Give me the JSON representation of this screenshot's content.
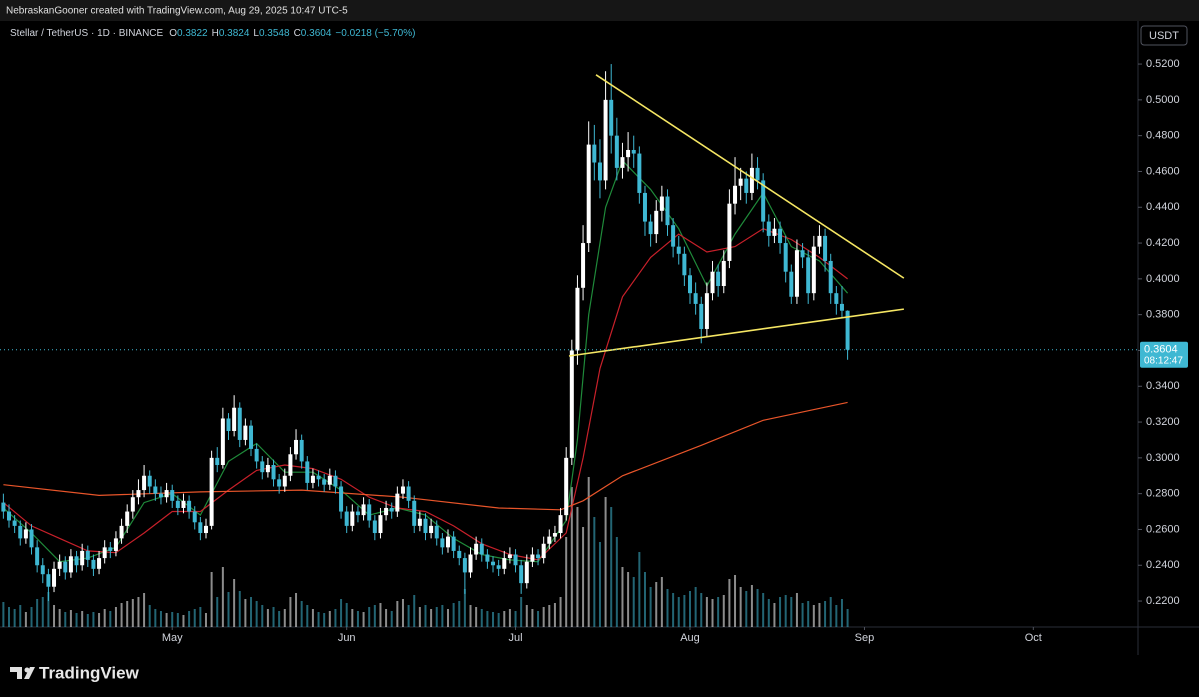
{
  "chart_data": {
    "type": "candlestick",
    "credit": "NebraskanGooner created with TradingView.com, Aug 29, 2025 10:47 UTC-5",
    "symbol": "Stellar / TetherUS · 1D · BINANCE",
    "ohlc_labels": [
      "O",
      "H",
      "L",
      "C"
    ],
    "change": "−0.0218 (−5.70%)",
    "currency": "USDT",
    "countdown": "08:12:47",
    "brand": "TradingView",
    "up_color": "#ffffff",
    "down_color": "#3fb8d3",
    "candles": [
      [
        0.275,
        0.28,
        0.266,
        0.27
      ],
      [
        0.27,
        0.274,
        0.261,
        0.265
      ],
      [
        0.265,
        0.268,
        0.258,
        0.262
      ],
      [
        0.262,
        0.265,
        0.251,
        0.255
      ],
      [
        0.255,
        0.264,
        0.252,
        0.26
      ],
      [
        0.26,
        0.263,
        0.246,
        0.25
      ],
      [
        0.25,
        0.254,
        0.236,
        0.24
      ],
      [
        0.24,
        0.244,
        0.23,
        0.235
      ],
      [
        0.235,
        0.238,
        0.22,
        0.228
      ],
      [
        0.228,
        0.242,
        0.225,
        0.238
      ],
      [
        0.238,
        0.246,
        0.234,
        0.242
      ],
      [
        0.242,
        0.245,
        0.232,
        0.236
      ],
      [
        0.236,
        0.249,
        0.233,
        0.245
      ],
      [
        0.245,
        0.248,
        0.236,
        0.24
      ],
      [
        0.24,
        0.252,
        0.237,
        0.248
      ],
      [
        0.248,
        0.251,
        0.239,
        0.243
      ],
      [
        0.243,
        0.246,
        0.234,
        0.238
      ],
      [
        0.238,
        0.248,
        0.235,
        0.244
      ],
      [
        0.244,
        0.254,
        0.241,
        0.25
      ],
      [
        0.25,
        0.253,
        0.244,
        0.248
      ],
      [
        0.248,
        0.259,
        0.245,
        0.255
      ],
      [
        0.255,
        0.266,
        0.252,
        0.262
      ],
      [
        0.262,
        0.274,
        0.258,
        0.27
      ],
      [
        0.27,
        0.282,
        0.266,
        0.278
      ],
      [
        0.278,
        0.288,
        0.274,
        0.282
      ],
      [
        0.282,
        0.296,
        0.278,
        0.29
      ],
      [
        0.29,
        0.293,
        0.28,
        0.284
      ],
      [
        0.284,
        0.288,
        0.276,
        0.28
      ],
      [
        0.28,
        0.284,
        0.274,
        0.278
      ],
      [
        0.278,
        0.286,
        0.275,
        0.282
      ],
      [
        0.282,
        0.285,
        0.272,
        0.276
      ],
      [
        0.276,
        0.279,
        0.268,
        0.272
      ],
      [
        0.272,
        0.28,
        0.269,
        0.276
      ],
      [
        0.276,
        0.279,
        0.266,
        0.27
      ],
      [
        0.27,
        0.273,
        0.26,
        0.264
      ],
      [
        0.264,
        0.267,
        0.254,
        0.258
      ],
      [
        0.258,
        0.266,
        0.255,
        0.262
      ],
      [
        0.262,
        0.304,
        0.26,
        0.3
      ],
      [
        0.3,
        0.306,
        0.292,
        0.296
      ],
      [
        0.296,
        0.328,
        0.294,
        0.322
      ],
      [
        0.322,
        0.325,
        0.31,
        0.315
      ],
      [
        0.315,
        0.335,
        0.312,
        0.328
      ],
      [
        0.328,
        0.331,
        0.306,
        0.31
      ],
      [
        0.31,
        0.322,
        0.307,
        0.318
      ],
      [
        0.318,
        0.321,
        0.301,
        0.305
      ],
      [
        0.305,
        0.308,
        0.294,
        0.298
      ],
      [
        0.298,
        0.301,
        0.288,
        0.292
      ],
      [
        0.292,
        0.3,
        0.289,
        0.296
      ],
      [
        0.296,
        0.299,
        0.284,
        0.288
      ],
      [
        0.288,
        0.291,
        0.28,
        0.284
      ],
      [
        0.284,
        0.294,
        0.281,
        0.29
      ],
      [
        0.29,
        0.306,
        0.287,
        0.302
      ],
      [
        0.302,
        0.316,
        0.299,
        0.31
      ],
      [
        0.31,
        0.313,
        0.294,
        0.298
      ],
      [
        0.298,
        0.301,
        0.282,
        0.286
      ],
      [
        0.286,
        0.294,
        0.283,
        0.29
      ],
      [
        0.29,
        0.293,
        0.284,
        0.288
      ],
      [
        0.288,
        0.291,
        0.281,
        0.285
      ],
      [
        0.285,
        0.294,
        0.282,
        0.29
      ],
      [
        0.29,
        0.293,
        0.28,
        0.284
      ],
      [
        0.284,
        0.287,
        0.266,
        0.27
      ],
      [
        0.27,
        0.273,
        0.258,
        0.262
      ],
      [
        0.262,
        0.274,
        0.259,
        0.27
      ],
      [
        0.27,
        0.273,
        0.264,
        0.268
      ],
      [
        0.268,
        0.278,
        0.265,
        0.274
      ],
      [
        0.274,
        0.277,
        0.261,
        0.265
      ],
      [
        0.265,
        0.268,
        0.254,
        0.258
      ],
      [
        0.258,
        0.272,
        0.255,
        0.268
      ],
      [
        0.268,
        0.276,
        0.265,
        0.272
      ],
      [
        0.272,
        0.275,
        0.266,
        0.27
      ],
      [
        0.27,
        0.284,
        0.267,
        0.28
      ],
      [
        0.28,
        0.288,
        0.277,
        0.284
      ],
      [
        0.284,
        0.287,
        0.272,
        0.276
      ],
      [
        0.276,
        0.279,
        0.258,
        0.262
      ],
      [
        0.262,
        0.27,
        0.259,
        0.266
      ],
      [
        0.266,
        0.269,
        0.254,
        0.258
      ],
      [
        0.258,
        0.266,
        0.255,
        0.262
      ],
      [
        0.262,
        0.265,
        0.251,
        0.255
      ],
      [
        0.255,
        0.258,
        0.246,
        0.25
      ],
      [
        0.25,
        0.26,
        0.247,
        0.256
      ],
      [
        0.256,
        0.259,
        0.244,
        0.248
      ],
      [
        0.248,
        0.251,
        0.24,
        0.244
      ],
      [
        0.244,
        0.247,
        0.224,
        0.236
      ],
      [
        0.236,
        0.25,
        0.233,
        0.246
      ],
      [
        0.246,
        0.256,
        0.243,
        0.252
      ],
      [
        0.252,
        0.255,
        0.242,
        0.246
      ],
      [
        0.246,
        0.249,
        0.238,
        0.242
      ],
      [
        0.242,
        0.245,
        0.236,
        0.24
      ],
      [
        0.24,
        0.243,
        0.234,
        0.238
      ],
      [
        0.238,
        0.248,
        0.235,
        0.244
      ],
      [
        0.244,
        0.25,
        0.241,
        0.246
      ],
      [
        0.246,
        0.249,
        0.236,
        0.24
      ],
      [
        0.24,
        0.243,
        0.224,
        0.23
      ],
      [
        0.23,
        0.246,
        0.227,
        0.242
      ],
      [
        0.242,
        0.25,
        0.239,
        0.246
      ],
      [
        0.246,
        0.249,
        0.24,
        0.244
      ],
      [
        0.244,
        0.256,
        0.241,
        0.252
      ],
      [
        0.252,
        0.26,
        0.249,
        0.256
      ],
      [
        0.256,
        0.262,
        0.253,
        0.258
      ],
      [
        0.258,
        0.272,
        0.255,
        0.268
      ],
      [
        0.268,
        0.306,
        0.265,
        0.3
      ],
      [
        0.3,
        0.366,
        0.296,
        0.36
      ],
      [
        0.36,
        0.402,
        0.352,
        0.395
      ],
      [
        0.395,
        0.43,
        0.388,
        0.42
      ],
      [
        0.42,
        0.488,
        0.415,
        0.475
      ],
      [
        0.475,
        0.486,
        0.455,
        0.465
      ],
      [
        0.465,
        0.478,
        0.445,
        0.455
      ],
      [
        0.455,
        0.516,
        0.45,
        0.5
      ],
      [
        0.5,
        0.52,
        0.47,
        0.48
      ],
      [
        0.48,
        0.49,
        0.455,
        0.462
      ],
      [
        0.462,
        0.476,
        0.456,
        0.468
      ],
      [
        0.468,
        0.482,
        0.46,
        0.472
      ],
      [
        0.472,
        0.48,
        0.462,
        0.47
      ],
      [
        0.47,
        0.474,
        0.442,
        0.448
      ],
      [
        0.448,
        0.452,
        0.424,
        0.432
      ],
      [
        0.432,
        0.436,
        0.418,
        0.425
      ],
      [
        0.425,
        0.444,
        0.42,
        0.438
      ],
      [
        0.438,
        0.452,
        0.432,
        0.446
      ],
      [
        0.446,
        0.45,
        0.424,
        0.43
      ],
      [
        0.43,
        0.434,
        0.412,
        0.418
      ],
      [
        0.418,
        0.424,
        0.408,
        0.414
      ],
      [
        0.414,
        0.418,
        0.396,
        0.402
      ],
      [
        0.402,
        0.406,
        0.386,
        0.392
      ],
      [
        0.392,
        0.398,
        0.38,
        0.386
      ],
      [
        0.386,
        0.39,
        0.364,
        0.372
      ],
      [
        0.372,
        0.398,
        0.368,
        0.392
      ],
      [
        0.392,
        0.41,
        0.388,
        0.404
      ],
      [
        0.404,
        0.408,
        0.39,
        0.396
      ],
      [
        0.396,
        0.416,
        0.392,
        0.41
      ],
      [
        0.41,
        0.45,
        0.406,
        0.442
      ],
      [
        0.442,
        0.468,
        0.436,
        0.452
      ],
      [
        0.452,
        0.462,
        0.444,
        0.456
      ],
      [
        0.456,
        0.46,
        0.442,
        0.448
      ],
      [
        0.448,
        0.47,
        0.444,
        0.462
      ],
      [
        0.462,
        0.468,
        0.45,
        0.455
      ],
      [
        0.455,
        0.459,
        0.426,
        0.432
      ],
      [
        0.432,
        0.436,
        0.418,
        0.424
      ],
      [
        0.424,
        0.434,
        0.42,
        0.428
      ],
      [
        0.428,
        0.432,
        0.414,
        0.42
      ],
      [
        0.42,
        0.424,
        0.398,
        0.404
      ],
      [
        0.404,
        0.408,
        0.386,
        0.39
      ],
      [
        0.39,
        0.422,
        0.386,
        0.416
      ],
      [
        0.416,
        0.42,
        0.406,
        0.412
      ],
      [
        0.412,
        0.416,
        0.386,
        0.392
      ],
      [
        0.392,
        0.424,
        0.388,
        0.418
      ],
      [
        0.418,
        0.43,
        0.414,
        0.424
      ],
      [
        0.424,
        0.428,
        0.404,
        0.41
      ],
      [
        0.41,
        0.414,
        0.386,
        0.392
      ],
      [
        0.392,
        0.396,
        0.38,
        0.386
      ],
      [
        0.386,
        0.396,
        0.378,
        0.3822
      ],
      [
        0.3822,
        0.3824,
        0.3548,
        0.3604
      ]
    ],
    "volume": [
      25,
      20,
      18,
      22,
      15,
      20,
      28,
      30,
      35,
      22,
      18,
      15,
      17,
      14,
      16,
      13,
      15,
      14,
      18,
      16,
      20,
      24,
      26,
      28,
      30,
      34,
      22,
      18,
      16,
      14,
      15,
      14,
      12,
      16,
      18,
      20,
      14,
      55,
      30,
      60,
      35,
      48,
      36,
      28,
      30,
      26,
      22,
      18,
      20,
      16,
      18,
      30,
      34,
      26,
      22,
      18,
      15,
      14,
      16,
      18,
      28,
      24,
      18,
      16,
      15,
      20,
      22,
      24,
      18,
      16,
      26,
      28,
      22,
      32,
      20,
      22,
      18,
      20,
      22,
      18,
      24,
      26,
      38,
      22,
      20,
      18,
      16,
      15,
      14,
      16,
      18,
      16,
      30,
      22,
      18,
      16,
      20,
      22,
      24,
      30,
      90,
      140,
      120,
      100,
      150,
      110,
      85,
      130,
      120,
      90,
      60,
      55,
      50,
      75,
      55,
      40,
      45,
      50,
      38,
      34,
      30,
      32,
      36,
      40,
      34,
      30,
      28,
      30,
      32,
      48,
      52,
      40,
      36,
      42,
      38,
      34,
      28,
      24,
      30,
      32,
      30,
      34,
      24,
      26,
      22,
      24,
      26,
      30,
      22,
      28,
      18
    ],
    "volume_lim": [
      0,
      160
    ],
    "moving_averages": [
      {
        "color": "#1f8a3a",
        "x": [
          0,
          5,
          10,
          15,
          20,
          25,
          30,
          35,
          40,
          45,
          50,
          55,
          60,
          65,
          70,
          75,
          80,
          85,
          90,
          95,
          100,
          102,
          104,
          107,
          110,
          115,
          120,
          125,
          130,
          135,
          140,
          145,
          150
        ],
        "values": [
          0.272,
          0.258,
          0.242,
          0.244,
          0.25,
          0.275,
          0.28,
          0.268,
          0.298,
          0.308,
          0.292,
          0.292,
          0.282,
          0.268,
          0.272,
          0.268,
          0.255,
          0.246,
          0.243,
          0.242,
          0.265,
          0.31,
          0.38,
          0.44,
          0.466,
          0.45,
          0.428,
          0.396,
          0.425,
          0.448,
          0.418,
          0.41,
          0.392
        ]
      },
      {
        "color": "#c8202a",
        "x": [
          0,
          5,
          10,
          15,
          20,
          25,
          30,
          35,
          40,
          45,
          50,
          55,
          60,
          65,
          70,
          75,
          80,
          85,
          90,
          95,
          100,
          103,
          106,
          110,
          115,
          120,
          125,
          130,
          135,
          140,
          145,
          150
        ],
        "values": [
          0.275,
          0.262,
          0.255,
          0.248,
          0.247,
          0.258,
          0.27,
          0.27,
          0.282,
          0.293,
          0.296,
          0.294,
          0.288,
          0.278,
          0.272,
          0.27,
          0.262,
          0.252,
          0.246,
          0.243,
          0.258,
          0.3,
          0.35,
          0.39,
          0.412,
          0.425,
          0.415,
          0.418,
          0.428,
          0.422,
          0.412,
          0.4
        ]
      },
      {
        "color": "#e8552a",
        "x": [
          0,
          17,
          35,
          53,
          71,
          88,
          99,
          103,
          110,
          124,
          135,
          150
        ],
        "values": [
          0.285,
          0.279,
          0.281,
          0.282,
          0.278,
          0.272,
          0.271,
          0.276,
          0.29,
          0.307,
          0.321,
          0.331
        ]
      }
    ],
    "trendlines": [
      {
        "color": "#f5e663",
        "x": [
          105.3,
          160
        ],
        "values": [
          0.514,
          0.4004
        ]
      },
      {
        "color": "#f5e663",
        "x": [
          100.5,
          160
        ],
        "values": [
          0.3569,
          0.3831
        ]
      }
    ],
    "xlim": [
      -0.6,
      201.6
    ],
    "xticks": [
      {
        "value": 30,
        "label": "May"
      },
      {
        "value": 61,
        "label": "Jun"
      },
      {
        "value": 91,
        "label": "Jul"
      },
      {
        "value": 122,
        "label": "Aug"
      },
      {
        "value": 153,
        "label": "Sep"
      },
      {
        "value": 183,
        "label": "Oct"
      }
    ],
    "ylim": [
      0.2055,
      0.5435
    ],
    "yticks": [
      {
        "value": 0.22,
        "label": "0.2200"
      },
      {
        "value": 0.24,
        "label": "0.2400"
      },
      {
        "value": 0.26,
        "label": "0.2600"
      },
      {
        "value": 0.28,
        "label": "0.2800"
      },
      {
        "value": 0.3,
        "label": "0.3000"
      },
      {
        "value": 0.32,
        "label": "0.3200"
      },
      {
        "value": 0.34,
        "label": "0.3400"
      },
      {
        "value": 0.36,
        "label": "0.3600"
      },
      {
        "value": 0.38,
        "label": "0.3800"
      },
      {
        "value": 0.4,
        "label": "0.4000"
      },
      {
        "value": 0.42,
        "label": "0.4200"
      },
      {
        "value": 0.44,
        "label": "0.4400"
      },
      {
        "value": 0.46,
        "label": "0.4600"
      },
      {
        "value": 0.48,
        "label": "0.4800"
      },
      {
        "value": 0.5,
        "label": "0.5000"
      },
      {
        "value": 0.52,
        "label": "0.5200"
      }
    ]
  }
}
